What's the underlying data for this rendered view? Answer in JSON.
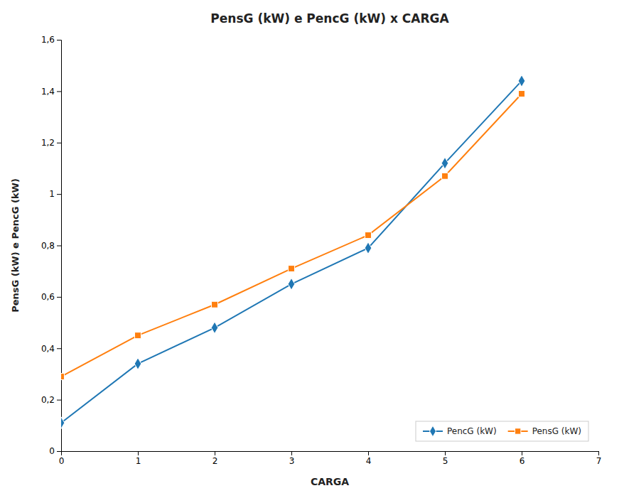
{
  "chart_data": {
    "type": "line",
    "title": "PensG (kW) e PencG (kW) x CARGA",
    "xlabel": "CARGA",
    "ylabel": "PensG (kW) e PencG (kW)",
    "x": [
      0,
      1,
      2,
      3,
      4,
      5,
      6
    ],
    "series": [
      {
        "name": "PencG (kW)",
        "marker": "diamond",
        "values": [
          0.11,
          0.34,
          0.48,
          0.65,
          0.79,
          1.12,
          1.44
        ]
      },
      {
        "name": "PensG (kW)",
        "marker": "square",
        "values": [
          0.29,
          0.45,
          0.57,
          0.71,
          0.84,
          1.07,
          1.39
        ]
      }
    ],
    "xlim": [
      0,
      7
    ],
    "ylim": [
      0,
      1.6
    ],
    "xticks": [
      0,
      1,
      2,
      3,
      4,
      5,
      6,
      7
    ],
    "yticks": [
      0,
      {
        "value": 0.2,
        "label": "0,2"
      },
      {
        "value": 0.4,
        "label": "0,4"
      },
      {
        "value": 0.6,
        "label": "0,6"
      },
      {
        "value": 0.8,
        "label": "0,8"
      },
      1,
      {
        "value": 1.2,
        "label": "1,2"
      },
      {
        "value": 1.4,
        "label": "1,4"
      },
      {
        "value": 1.6,
        "label": "1,6"
      }
    ],
    "grid": false,
    "legend": "lower right"
  }
}
